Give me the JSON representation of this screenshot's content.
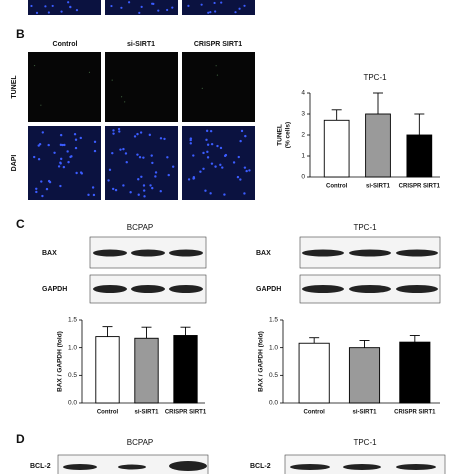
{
  "panel_b": {
    "label": "B",
    "columns": [
      "Control",
      "si-SIRT1",
      "CRISPR SIRT1"
    ],
    "rows": [
      "TUNEL",
      "DAPI"
    ]
  },
  "panel_c": {
    "label": "C",
    "blots": [
      {
        "title": "BCPAP",
        "bands": [
          "BAX",
          "GAPDH"
        ]
      },
      {
        "title": "TPC-1",
        "bands": [
          "BAX",
          "GAPDH"
        ]
      }
    ]
  },
  "panel_d": {
    "label": "D",
    "blots": [
      {
        "title": "BCPAP",
        "bands": [
          "BCL-2"
        ]
      },
      {
        "title": "TPC-1",
        "bands": [
          "BCL-2"
        ]
      }
    ]
  },
  "chart_data": [
    {
      "type": "bar",
      "title": "TPC-1",
      "ylabel": [
        "TUNEL",
        "(% cells)"
      ],
      "categories": [
        "Control",
        "si-SIRT1",
        "CRISPR SIRT1"
      ],
      "values": [
        2.7,
        3.0,
        2.0
      ],
      "errors": [
        0.5,
        1.0,
        1.0
      ],
      "colors": [
        "#ffffff",
        "#9a9a9a",
        "#000000"
      ],
      "ylim": [
        0,
        4
      ],
      "yticks": [
        0,
        1,
        2,
        3,
        4
      ]
    },
    {
      "type": "bar",
      "ylabel": [
        "BAX / GAPDH (fold)"
      ],
      "categories": [
        "Control",
        "si-SIRT1",
        "CRISPR SIRT1"
      ],
      "values": [
        1.2,
        1.17,
        1.22
      ],
      "errors": [
        0.18,
        0.2,
        0.15
      ],
      "colors": [
        "#ffffff",
        "#9a9a9a",
        "#000000"
      ],
      "ylim": [
        0,
        1.5
      ],
      "yticks": [
        {
          "value": 0,
          "label": "0.0"
        },
        {
          "value": 0.5,
          "label": "0.5"
        },
        {
          "value": 1,
          "label": "1.0"
        },
        {
          "value": 1.5,
          "label": "1.5"
        }
      ]
    },
    {
      "type": "bar",
      "ylabel": [
        "BAX / GAPDH (fold)"
      ],
      "categories": [
        "Control",
        "si-SIRT1",
        "CRISPR SIRT1"
      ],
      "values": [
        1.08,
        1.0,
        1.1
      ],
      "errors": [
        0.1,
        0.13,
        0.12
      ],
      "colors": [
        "#ffffff",
        "#9a9a9a",
        "#000000"
      ],
      "ylim": [
        0,
        1.5
      ],
      "yticks": [
        {
          "value": 0,
          "label": "0.0"
        },
        {
          "value": 0.5,
          "label": "0.5"
        },
        {
          "value": 1,
          "label": "1.0"
        },
        {
          "value": 1.5,
          "label": "1.5"
        }
      ]
    }
  ]
}
